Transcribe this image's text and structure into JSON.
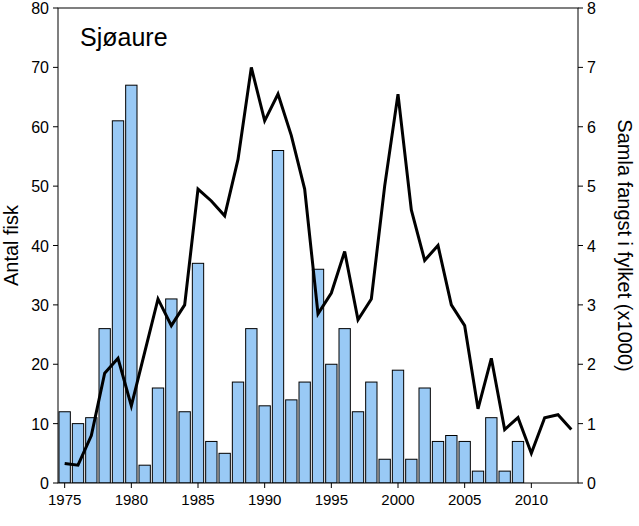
{
  "chart_data": {
    "type": "bar",
    "title": "Sjøaure",
    "y_label": "Antal fisk",
    "y2_label": "Samla fangst i fylket (x1000)",
    "x": [
      1975,
      1976,
      1977,
      1978,
      1979,
      1980,
      1981,
      1982,
      1983,
      1984,
      1985,
      1986,
      1987,
      1988,
      1989,
      1990,
      1991,
      1992,
      1993,
      1994,
      1995,
      1996,
      1997,
      1998,
      1999,
      2000,
      2001,
      2002,
      2003,
      2004,
      2005,
      2006,
      2007,
      2008,
      2009,
      2010,
      2011,
      2012,
      2013
    ],
    "series": [
      {
        "type": "bar",
        "color": "#99c9f5",
        "values": [
          12,
          10,
          11,
          26,
          61,
          67,
          3,
          16,
          31,
          12,
          37,
          7,
          5,
          17,
          26,
          13,
          56,
          14,
          17,
          36,
          20,
          26,
          12,
          17,
          4,
          19,
          4,
          16,
          7,
          8,
          7,
          2,
          11,
          2,
          7,
          null,
          null,
          null,
          null
        ]
      },
      {
        "type": "line",
        "axis": "y2",
        "color": "#000000",
        "values": [
          0.33,
          0.3,
          0.8,
          1.85,
          2.1,
          1.3,
          2.2,
          3.1,
          2.65,
          3.0,
          4.95,
          4.75,
          4.5,
          5.45,
          7.0,
          6.1,
          6.55,
          5.85,
          4.95,
          2.85,
          3.2,
          3.9,
          2.75,
          3.1,
          5.0,
          6.55,
          4.6,
          3.75,
          4.0,
          3.0,
          2.65,
          1.25,
          2.1,
          0.9,
          1.1,
          0.5,
          1.1,
          1.15,
          0.9
        ]
      }
    ],
    "xlim": [
      1974.5,
      2013.5
    ],
    "xticks": [
      1975,
      1980,
      1985,
      1990,
      1995,
      2000,
      2005,
      2010
    ],
    "ylim": [
      0,
      80
    ],
    "yticks": [
      0,
      10,
      20,
      30,
      40,
      50,
      60,
      70,
      80
    ],
    "y2lim": [
      0,
      8
    ],
    "y2ticks": [
      0,
      1,
      2,
      3,
      4,
      5,
      6,
      7,
      8
    ],
    "grid": false
  }
}
